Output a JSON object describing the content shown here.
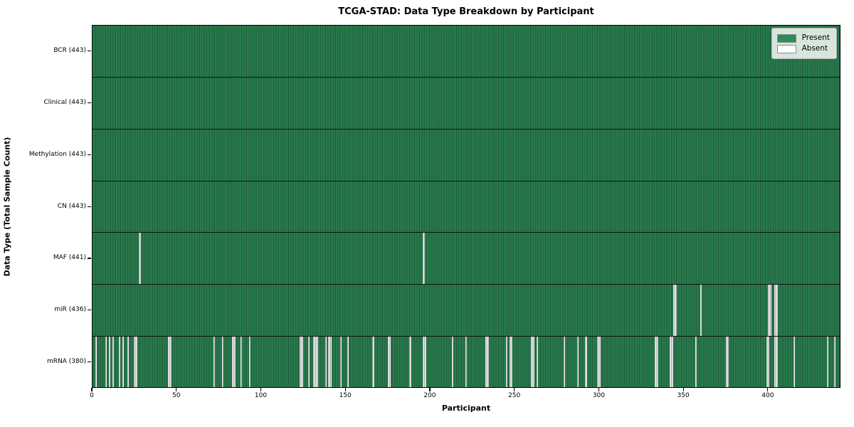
{
  "chart_data": {
    "type": "heatmap",
    "title": "TCGA-STAD: Data Type Breakdown by Participant",
    "xlabel": "Participant",
    "ylabel": "Data Type (Total Sample Count)",
    "n_participants": 443,
    "x_range": [
      0,
      443
    ],
    "x_ticks": [
      0,
      50,
      100,
      150,
      200,
      250,
      300,
      350,
      400
    ],
    "grid": false,
    "colors": {
      "present": "#2e8b57",
      "absent": "#ffffff",
      "cell_edge": "rgba(0,0,0,0.45)",
      "row_separator": "#111111",
      "legend_background": "rgba(255,255,255,0.82)"
    },
    "legend": {
      "position": "upper right",
      "entries": [
        {
          "label": "Present",
          "color": "#2e8b57"
        },
        {
          "label": "Absent",
          "color": "#ffffff"
        }
      ]
    },
    "rows": [
      {
        "label": "BCR (443)",
        "name": "BCR",
        "present_count": 443,
        "absent_participants": []
      },
      {
        "label": "Clinical (443)",
        "name": "Clinical",
        "present_count": 443,
        "absent_participants": []
      },
      {
        "label": "Methylation (443)",
        "name": "Methylation",
        "present_count": 443,
        "absent_participants": []
      },
      {
        "label": "CN (443)",
        "name": "CN",
        "present_count": 443,
        "absent_participants": []
      },
      {
        "label": "MAF (441)",
        "name": "MAF",
        "present_count": 441,
        "absent_participants": [
          28,
          196
        ]
      },
      {
        "label": "miR (436)",
        "name": "miR",
        "present_count": 436,
        "absent_participants": [
          344,
          345,
          360,
          400,
          401,
          404,
          405
        ]
      },
      {
        "label": "mRNA (380)",
        "name": "mRNA",
        "present_count": 380,
        "absent_participants": [
          2,
          8,
          10,
          12,
          16,
          18,
          21,
          25,
          26,
          45,
          46,
          72,
          77,
          83,
          84,
          88,
          93,
          123,
          124,
          128,
          131,
          132,
          133,
          138,
          140,
          141,
          147,
          151,
          166,
          175,
          176,
          188,
          196,
          197,
          213,
          221,
          233,
          234,
          245,
          247,
          248,
          260,
          261,
          263,
          279,
          287,
          292,
          299,
          300,
          333,
          334,
          342,
          343,
          357,
          375,
          376,
          399,
          400,
          404,
          405,
          415,
          435,
          439
        ]
      }
    ]
  }
}
